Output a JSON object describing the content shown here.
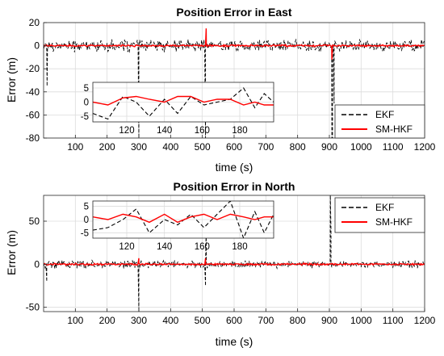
{
  "colors": {
    "ekf": "#000000",
    "smhkf": "#ff0000",
    "grid": "#dcdcdc",
    "frame": "#262626"
  },
  "chart_data": [
    {
      "type": "line",
      "title": "Position Error in East",
      "xlabel": "time (s)",
      "ylabel": "Error (m)",
      "xlim": [
        0,
        1200
      ],
      "ylim": [
        -80,
        20
      ],
      "xticks": [
        100,
        200,
        300,
        400,
        500,
        600,
        700,
        800,
        900,
        1000,
        1100,
        1200
      ],
      "yticks": [
        20,
        0,
        -20,
        -40,
        -60,
        -80
      ],
      "grid": true,
      "legend": {
        "position": "bottom-right",
        "entries": [
          "EKF",
          "SM-HKF"
        ]
      },
      "spikes": {
        "EKF": [
          [
            11,
            -35
          ],
          [
            300,
            -80
          ],
          [
            510,
            -80
          ],
          [
            908,
            -80
          ],
          [
            910,
            -95
          ],
          [
            915,
            -50
          ]
        ],
        "SM-HKF": [
          [
            512,
            15
          ],
          [
            908,
            -12
          ]
        ]
      },
      "noise": {
        "EKF": 6,
        "SM-HKF": 1.5
      },
      "series": [
        {
          "name": "EKF",
          "style": "dashed",
          "color": "#000000"
        },
        {
          "name": "SM-HKF",
          "style": "solid",
          "color": "#ff0000"
        }
      ],
      "inset": {
        "xlim": [
          102,
          198
        ],
        "ylim": [
          -7,
          7
        ],
        "xticks": [
          120,
          140,
          160,
          180
        ],
        "yticks": [
          5,
          0,
          -5
        ],
        "x": [
          102,
          110,
          118,
          125,
          132,
          140,
          147,
          154,
          161,
          168,
          175,
          182,
          188,
          193,
          198
        ],
        "EKF": [
          -4,
          -6,
          2,
          0,
          -5,
          1,
          -4,
          2,
          -1,
          0,
          1,
          5,
          -2,
          3,
          0
        ],
        "SM-HKF": [
          0,
          -1,
          1.5,
          2,
          1,
          0,
          2,
          2,
          0,
          1,
          1,
          -1,
          0,
          -1,
          -1
        ]
      }
    },
    {
      "type": "line",
      "title": "Position Error in North",
      "xlabel": "time (s)",
      "ylabel": "Error (m)",
      "xlim": [
        0,
        1200
      ],
      "ylim": [
        -55,
        80
      ],
      "xticks": [
        100,
        200,
        300,
        400,
        500,
        600,
        700,
        800,
        900,
        1000,
        1100,
        1200
      ],
      "yticks": [
        50,
        0,
        -50
      ],
      "grid": true,
      "legend": {
        "position": "top-right",
        "entries": [
          "EKF",
          "SM-HKF"
        ]
      },
      "spikes": {
        "EKF": [
          [
            10,
            -20
          ],
          [
            300,
            -55
          ],
          [
            510,
            -25
          ],
          [
            512,
            40
          ],
          [
            903,
            80
          ],
          [
            905,
            40
          ]
        ],
        "SM-HKF": [
          [
            300,
            7
          ],
          [
            510,
            7
          ]
        ]
      },
      "noise": {
        "EKF": 5,
        "SM-HKF": 2
      },
      "series": [
        {
          "name": "EKF",
          "style": "dashed",
          "color": "#000000"
        },
        {
          "name": "SM-HKF",
          "style": "solid",
          "color": "#ff0000"
        }
      ],
      "inset": {
        "xlim": [
          102,
          198
        ],
        "ylim": [
          -7,
          7
        ],
        "xticks": [
          120,
          140,
          160,
          180
        ],
        "yticks": [
          5,
          0,
          -5
        ],
        "x": [
          102,
          110,
          118,
          125,
          132,
          140,
          147,
          154,
          161,
          168,
          175,
          182,
          188,
          193,
          198
        ],
        "EKF": [
          -4,
          -3,
          0,
          4,
          -5,
          0,
          -2,
          2,
          -3,
          2,
          7,
          -7,
          3,
          -5,
          2
        ],
        "SM-HKF": [
          1,
          0,
          2,
          1,
          -1,
          2,
          -1,
          1,
          2,
          0,
          2,
          1,
          0,
          1,
          1
        ]
      }
    }
  ]
}
